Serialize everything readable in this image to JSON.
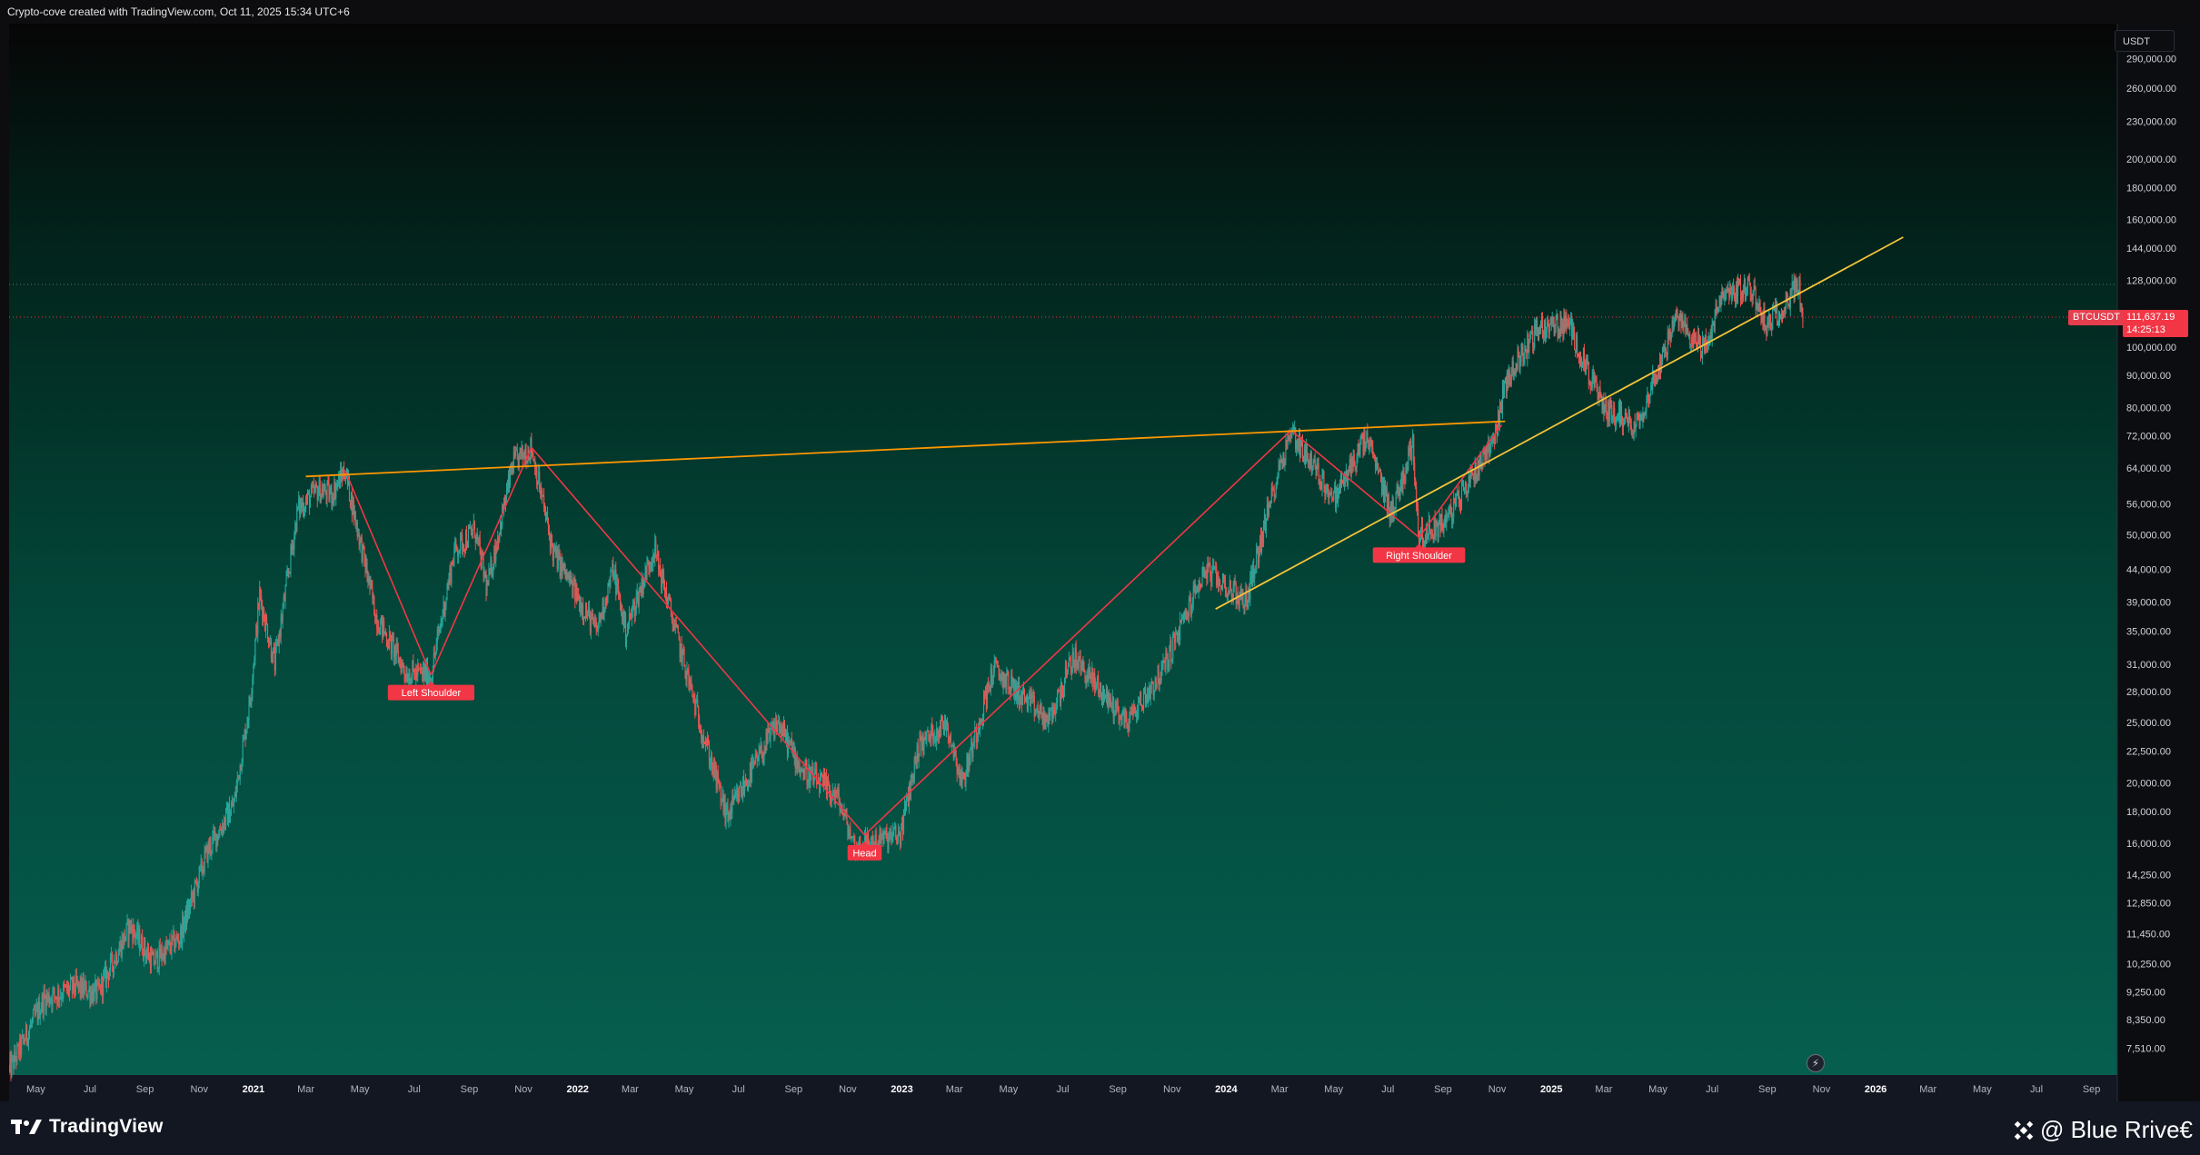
{
  "header": {
    "caption": "Crypto-cove created with TradingView.com, Oct 11, 2025 15:34 UTC+6"
  },
  "price_scale": {
    "currency": "USDT",
    "symbol": "BTCUSDT",
    "last_price": "111,637.19",
    "countdown": "14:25:13"
  },
  "footer": {
    "logo_text": "TradingView",
    "watermark_text": "@ Blue Rrive€"
  },
  "colors": {
    "up": "#26a69a",
    "down": "#ef5350",
    "pattern_line": "#f23645",
    "neckline": "#ff9800",
    "trendline": "#f5c33b",
    "label_bg": "#f23645"
  },
  "chart_data": {
    "type": "candlestick",
    "scale": "log",
    "ylim": [
      6800,
      330000
    ],
    "x_range": [
      "2020-04-01",
      "2026-09-30"
    ],
    "ytick_labels": [
      "290,000.00",
      "260,000.00",
      "230,000.00",
      "200,000.00",
      "180,000.00",
      "160,000.00",
      "144,000.00",
      "128,000.00",
      "100,000.00",
      "90,000.00",
      "80,000.00",
      "72,000.00",
      "64,000.00",
      "56,000.00",
      "50,000.00",
      "44,000.00",
      "39,000.00",
      "35,000.00",
      "31,000.00",
      "28,000.00",
      "25,000.00",
      "22,500.00",
      "20,000.00",
      "18,000.00",
      "16,000.00",
      "14,250.00",
      "12,850.00",
      "11,450.00",
      "10,250.00",
      "9,250.00",
      "8,350.00",
      "7,510.00"
    ],
    "ytick_values": [
      290000,
      260000,
      230000,
      200000,
      180000,
      160000,
      144000,
      128000,
      100000,
      90000,
      80000,
      72000,
      64000,
      56000,
      50000,
      44000,
      39000,
      35000,
      31000,
      28000,
      25000,
      22500,
      20000,
      18000,
      16000,
      14250,
      12850,
      11450,
      10250,
      9250,
      8350,
      7510
    ],
    "xtick_labels": [
      "May",
      "Jul",
      "Sep",
      "Nov",
      "2021",
      "Mar",
      "May",
      "Jul",
      "Sep",
      "Nov",
      "2022",
      "Mar",
      "May",
      "Jul",
      "Sep",
      "Nov",
      "2023",
      "Mar",
      "May",
      "Jul",
      "Sep",
      "Nov",
      "2024",
      "Mar",
      "May",
      "Jul",
      "Sep",
      "Nov",
      "2025",
      "Mar",
      "May",
      "Jul",
      "Sep",
      "Nov",
      "2026",
      "Mar",
      "May",
      "Jul",
      "Sep"
    ],
    "xtick_dates": [
      "2020-05-01",
      "2020-07-01",
      "2020-09-01",
      "2020-11-01",
      "2021-01-01",
      "2021-03-01",
      "2021-05-01",
      "2021-07-01",
      "2021-09-01",
      "2021-11-01",
      "2022-01-01",
      "2022-03-01",
      "2022-05-01",
      "2022-07-01",
      "2022-09-01",
      "2022-11-01",
      "2023-01-01",
      "2023-03-01",
      "2023-05-01",
      "2023-07-01",
      "2023-09-01",
      "2023-11-01",
      "2024-01-01",
      "2024-03-01",
      "2024-05-01",
      "2024-07-01",
      "2024-09-01",
      "2024-11-01",
      "2025-01-01",
      "2025-03-01",
      "2025-05-01",
      "2025-07-01",
      "2025-09-01",
      "2025-11-01",
      "2026-01-01",
      "2026-03-01",
      "2026-05-01",
      "2026-07-01",
      "2026-09-01"
    ],
    "year_ticks": [
      "2021",
      "2022",
      "2023",
      "2024",
      "2025",
      "2026"
    ],
    "price_path": [
      [
        "2020-04-01",
        6900
      ],
      [
        "2020-05-10",
        9000
      ],
      [
        "2020-06-15",
        9400
      ],
      [
        "2020-07-10",
        9200
      ],
      [
        "2020-08-15",
        11800
      ],
      [
        "2020-09-10",
        10300
      ],
      [
        "2020-10-10",
        11300
      ],
      [
        "2020-11-10",
        15500
      ],
      [
        "2020-12-10",
        18500
      ],
      [
        "2020-12-28",
        27000
      ],
      [
        "2021-01-08",
        40000
      ],
      [
        "2021-01-25",
        31000
      ],
      [
        "2021-02-20",
        55000
      ],
      [
        "2021-03-15",
        59000
      ],
      [
        "2021-03-30",
        58000
      ],
      [
        "2021-04-14",
        63500
      ],
      [
        "2021-05-19",
        37000
      ],
      [
        "2021-06-22",
        30000
      ],
      [
        "2021-07-20",
        29800
      ],
      [
        "2021-08-15",
        47000
      ],
      [
        "2021-09-07",
        51000
      ],
      [
        "2021-09-21",
        41000
      ],
      [
        "2021-10-20",
        65000
      ],
      [
        "2021-11-10",
        69000
      ],
      [
        "2021-12-04",
        47000
      ],
      [
        "2022-01-22",
        35000
      ],
      [
        "2022-02-10",
        44000
      ],
      [
        "2022-02-24",
        35000
      ],
      [
        "2022-03-28",
        47500
      ],
      [
        "2022-05-12",
        27000
      ],
      [
        "2022-06-18",
        17600
      ],
      [
        "2022-08-14",
        25000
      ],
      [
        "2022-09-10",
        21000
      ],
      [
        "2022-10-20",
        19000
      ],
      [
        "2022-11-09",
        15800
      ],
      [
        "2022-12-30",
        16500
      ],
      [
        "2023-01-20",
        23000
      ],
      [
        "2023-02-20",
        25000
      ],
      [
        "2023-03-10",
        20000
      ],
      [
        "2023-04-14",
        30500
      ],
      [
        "2023-06-15",
        25000
      ],
      [
        "2023-07-13",
        31800
      ],
      [
        "2023-09-11",
        25000
      ],
      [
        "2023-10-20",
        30000
      ],
      [
        "2023-12-08",
        44000
      ],
      [
        "2024-01-23",
        39000
      ],
      [
        "2024-02-28",
        63000
      ],
      [
        "2024-03-14",
        73500
      ],
      [
        "2024-05-01",
        57000
      ],
      [
        "2024-06-07",
        71500
      ],
      [
        "2024-07-05",
        54000
      ],
      [
        "2024-07-29",
        70000
      ],
      [
        "2024-08-05",
        49500
      ],
      [
        "2024-09-06",
        53000
      ],
      [
        "2024-10-29",
        72000
      ],
      [
        "2024-11-12",
        89000
      ],
      [
        "2024-12-17",
        107000
      ],
      [
        "2025-01-20",
        109000
      ],
      [
        "2025-02-28",
        80000
      ],
      [
        "2025-04-07",
        75000
      ],
      [
        "2025-05-22",
        111000
      ],
      [
        "2025-06-22",
        99000
      ],
      [
        "2025-07-14",
        122000
      ],
      [
        "2025-08-14",
        124000
      ],
      [
        "2025-09-01",
        108000
      ],
      [
        "2025-10-06",
        126000
      ],
      [
        "2025-10-11",
        111637
      ]
    ],
    "pattern_lines": [
      [
        [
          "2021-04-14",
          63500
        ],
        [
          "2021-07-20",
          29800
        ]
      ],
      [
        [
          "2021-07-20",
          29800
        ],
        [
          "2021-11-10",
          69000
        ]
      ],
      [
        [
          "2021-11-10",
          69000
        ],
        [
          "2022-11-20",
          16500
        ]
      ],
      [
        [
          "2022-11-20",
          16500
        ],
        [
          "2024-03-14",
          73500
        ]
      ],
      [
        [
          "2024-03-14",
          73500
        ],
        [
          "2024-08-05",
          49500
        ]
      ],
      [
        [
          "2024-08-05",
          49500
        ],
        [
          "2024-11-06",
          75000
        ]
      ]
    ],
    "neckline": [
      [
        "2021-03-01",
        62000
      ],
      [
        "2024-11-10",
        76000
      ]
    ],
    "trendline": [
      [
        "2023-12-20",
        38000
      ],
      [
        "2026-02-01",
        150000
      ]
    ],
    "reference_lines": [
      126000,
      111637
    ],
    "annotations": [
      {
        "text": "Left Shoulder",
        "date": "2021-07-20",
        "price": 29800
      },
      {
        "text": "Head",
        "date": "2022-11-20",
        "price": 16500
      },
      {
        "text": "Right Shoulder",
        "date": "2024-08-05",
        "price": 49500
      }
    ]
  }
}
